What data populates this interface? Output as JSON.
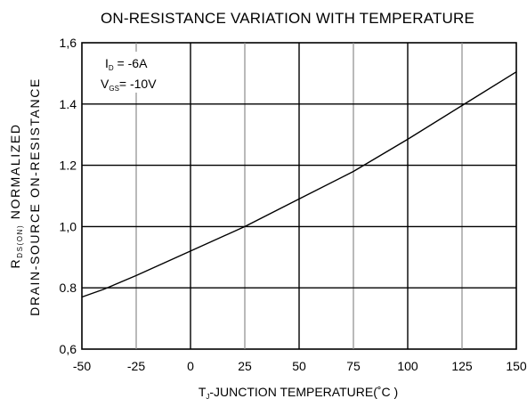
{
  "chart_data": {
    "type": "line",
    "title": "ON-RESISTANCE VARIATION WITH TEMPERATURE",
    "xlabel": {
      "prefix": "T",
      "sub": "J",
      "suffix": "-JUNCTION TEMPERATURE(˚C )"
    },
    "ylabel": {
      "line1_prefix": "R",
      "line1_sub": "DS(ON)",
      "line1_suffix": " NORMALIZED",
      "line2": "DRAIN-SOURCE ON-RESISTANCE"
    },
    "xlim": [
      -50,
      150
    ],
    "ylim": [
      0.6,
      1.6
    ],
    "x_ticks": [
      -50,
      -25,
      0,
      25,
      50,
      75,
      100,
      125,
      150
    ],
    "y_ticks": [
      0.6,
      0.8,
      1.0,
      1.2,
      1.4,
      1.6
    ],
    "x_tick_labels": [
      "-50",
      "-25",
      "0",
      "25",
      "50",
      "75",
      "100",
      "125",
      "150"
    ],
    "y_tick_labels": [
      "0,6",
      "0.8",
      "1,0",
      "1.2",
      "1.4",
      "1,6"
    ],
    "grid": true,
    "annotations": [
      {
        "prefix": "I",
        "sub": "D",
        "suffix": " = -6A"
      },
      {
        "prefix": "V",
        "sub": "GS",
        "suffix": "= -10V"
      }
    ],
    "series": [
      {
        "x": [
          -50,
          -40,
          -25,
          0,
          25,
          50,
          75,
          100,
          125,
          150
        ],
        "y": [
          0.77,
          0.795,
          0.84,
          0.92,
          1.0,
          1.09,
          1.18,
          1.285,
          1.395,
          1.505
        ]
      }
    ]
  }
}
